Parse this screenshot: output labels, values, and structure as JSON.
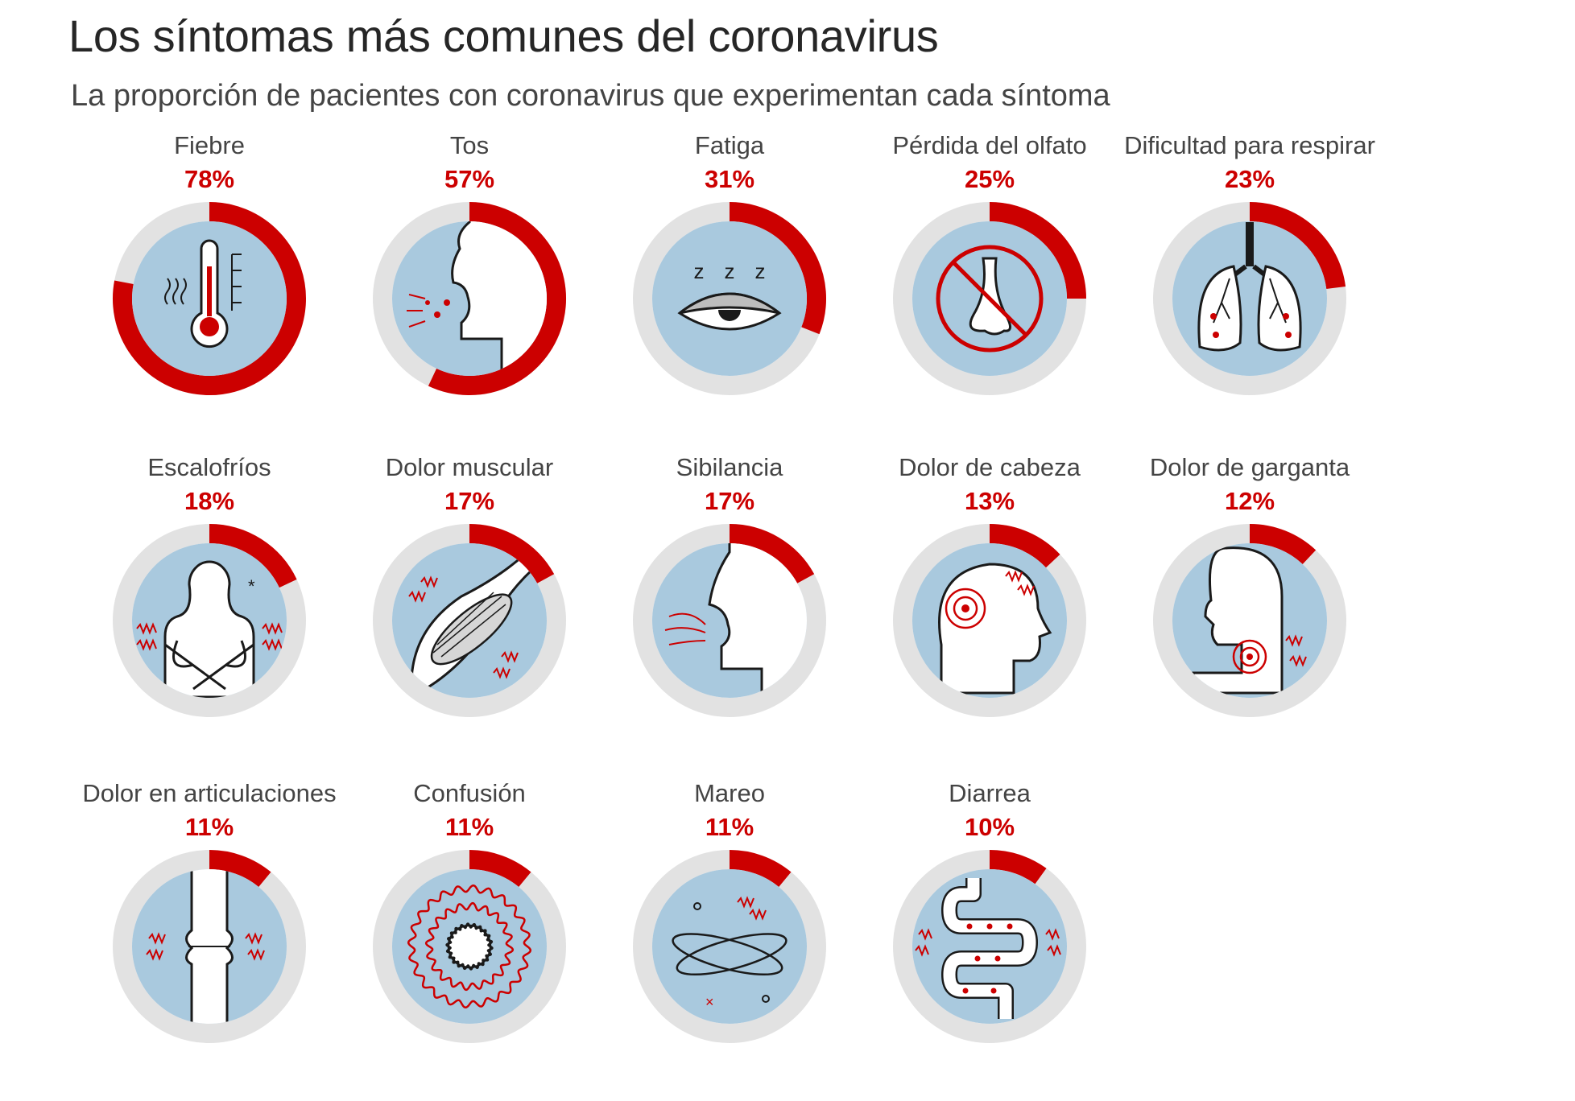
{
  "title": "Los síntomas más comunes del coronavirus",
  "subtitle": "La proporción de pacientes con coronavirus que experimentan cada síntoma",
  "colors": {
    "accent": "#cc0000",
    "track": "#e2e2e2",
    "fill": "#a9c9de",
    "ink": "#1a1a1a"
  },
  "chart_data": {
    "type": "pie",
    "title": "Los síntomas más comunes del coronavirus",
    "subtitle": "La proporción de pacientes con coronavirus que experimentan cada síntoma",
    "unit": "%",
    "categories": [
      "Fiebre",
      "Tos",
      "Fatiga",
      "Pérdida del olfato",
      "Dificultad para respirar",
      "Escalofríos",
      "Dolor muscular",
      "Sibilancia",
      "Dolor de cabeza",
      "Dolor de garganta",
      "Dolor en articulaciones",
      "Confusión",
      "Mareo",
      "Diarrea"
    ],
    "values": [
      78,
      57,
      31,
      25,
      23,
      18,
      17,
      17,
      13,
      12,
      11,
      11,
      11,
      10
    ],
    "items": [
      {
        "label": "Fiebre",
        "value": 78,
        "display": "78%",
        "icon": "thermometer-icon"
      },
      {
        "label": "Tos",
        "value": 57,
        "display": "57%",
        "icon": "cough-icon"
      },
      {
        "label": "Fatiga",
        "value": 31,
        "display": "31%",
        "icon": "sleepy-eye-icon"
      },
      {
        "label": "Pérdida del olfato",
        "value": 25,
        "display": "25%",
        "icon": "no-smell-icon"
      },
      {
        "label": "Dificultad para respirar",
        "value": 23,
        "display": "23%",
        "icon": "lungs-icon"
      },
      {
        "label": "Escalofríos",
        "value": 18,
        "display": "18%",
        "icon": "chills-icon"
      },
      {
        "label": "Dolor muscular",
        "value": 17,
        "display": "17%",
        "icon": "muscle-icon"
      },
      {
        "label": "Sibilancia",
        "value": 17,
        "display": "17%",
        "icon": "wheeze-icon"
      },
      {
        "label": "Dolor de cabeza",
        "value": 13,
        "display": "13%",
        "icon": "headache-icon"
      },
      {
        "label": "Dolor de garganta",
        "value": 12,
        "display": "12%",
        "icon": "sore-throat-icon"
      },
      {
        "label": "Dolor en articulaciones",
        "value": 11,
        "display": "11%",
        "icon": "joint-icon"
      },
      {
        "label": "Confusión",
        "value": 11,
        "display": "11%",
        "icon": "confusion-icon"
      },
      {
        "label": "Mareo",
        "value": 11,
        "display": "11%",
        "icon": "dizziness-icon"
      },
      {
        "label": "Diarrea",
        "value": 10,
        "display": "10%",
        "icon": "intestine-icon"
      }
    ]
  }
}
